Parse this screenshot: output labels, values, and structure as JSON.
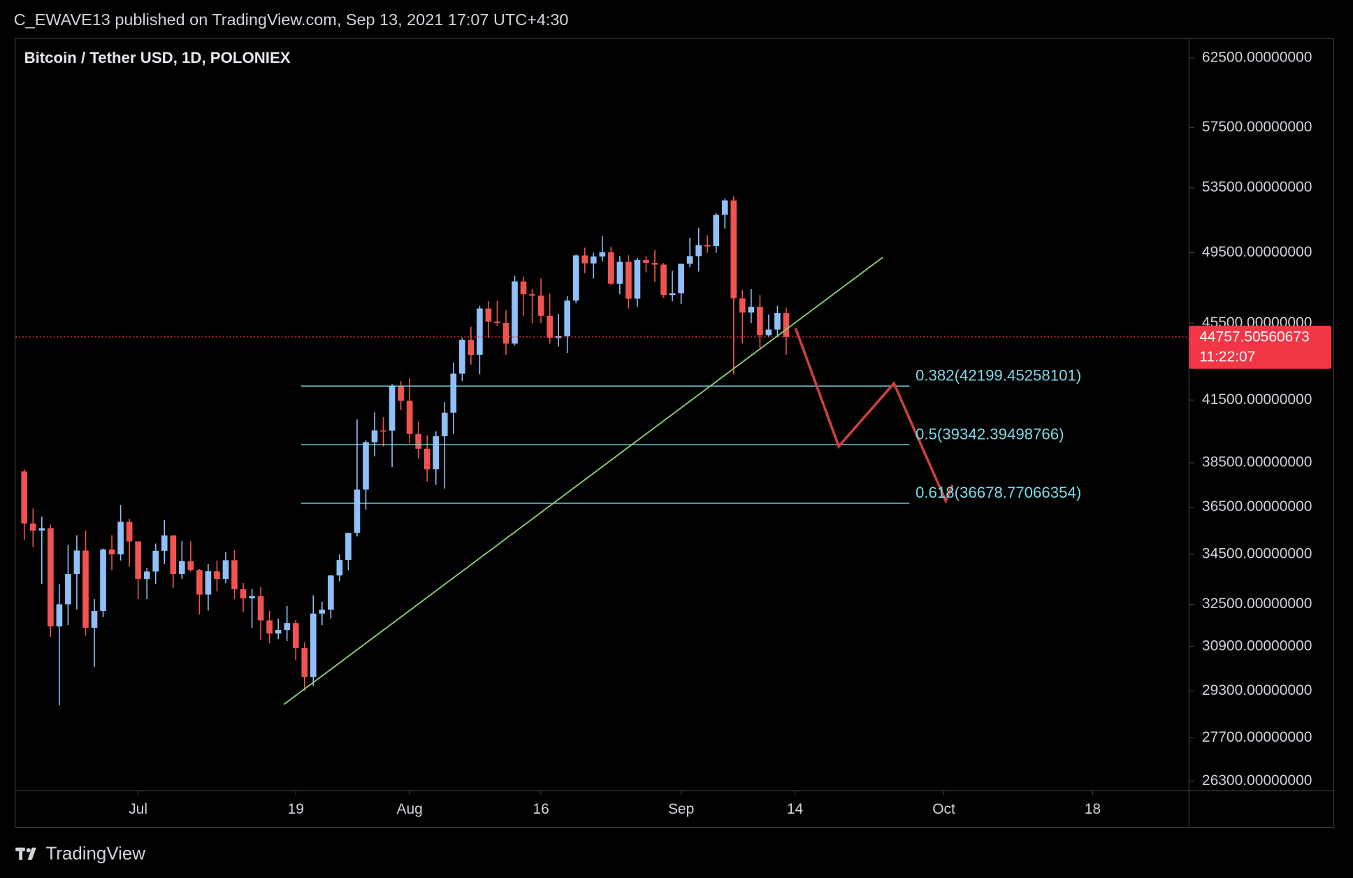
{
  "header": "C_EWAVE13 published on TradingView.com, Sep 13, 2021 17:07 UTC+4:30",
  "footer": "TradingView",
  "chart_data": {
    "type": "candlestick",
    "title": "Bitcoin / Tether USD, 1D, POLONIEX",
    "x": [
      "2021-06-18",
      "2021-06-19",
      "2021-06-20",
      "2021-06-21",
      "2021-06-22",
      "2021-06-23",
      "2021-06-24",
      "2021-06-25",
      "2021-06-26",
      "2021-06-27",
      "2021-06-28",
      "2021-06-29",
      "2021-06-30",
      "2021-07-01",
      "2021-07-02",
      "2021-07-03",
      "2021-07-04",
      "2021-07-05",
      "2021-07-06",
      "2021-07-07",
      "2021-07-08",
      "2021-07-09",
      "2021-07-10",
      "2021-07-11",
      "2021-07-12",
      "2021-07-13",
      "2021-07-14",
      "2021-07-15",
      "2021-07-16",
      "2021-07-17",
      "2021-07-18",
      "2021-07-19",
      "2021-07-20",
      "2021-07-21",
      "2021-07-22",
      "2021-07-23",
      "2021-07-24",
      "2021-07-25",
      "2021-07-26",
      "2021-07-27",
      "2021-07-28",
      "2021-07-29",
      "2021-07-30",
      "2021-07-31",
      "2021-08-01",
      "2021-08-02",
      "2021-08-03",
      "2021-08-04",
      "2021-08-05",
      "2021-08-06",
      "2021-08-07",
      "2021-08-08",
      "2021-08-09",
      "2021-08-10",
      "2021-08-11",
      "2021-08-12",
      "2021-08-13",
      "2021-08-14",
      "2021-08-15",
      "2021-08-16",
      "2021-08-17",
      "2021-08-18",
      "2021-08-19",
      "2021-08-20",
      "2021-08-21",
      "2021-08-22",
      "2021-08-23",
      "2021-08-24",
      "2021-08-25",
      "2021-08-26",
      "2021-08-27",
      "2021-08-28",
      "2021-08-29",
      "2021-08-30",
      "2021-08-31",
      "2021-09-01",
      "2021-09-02",
      "2021-09-03",
      "2021-09-04",
      "2021-09-05",
      "2021-09-06",
      "2021-09-07",
      "2021-09-08",
      "2021-09-09",
      "2021-09-10",
      "2021-09-11",
      "2021-09-12",
      "2021-09-13"
    ],
    "open": [
      38100,
      35800,
      35500,
      35600,
      31650,
      32500,
      33700,
      34660,
      31600,
      32240,
      34700,
      34500,
      35870,
      35040,
      33500,
      33800,
      34650,
      35290,
      33700,
      34220,
      33860,
      32880,
      33810,
      33500,
      34260,
      33090,
      32730,
      32820,
      31880,
      31380,
      31520,
      31780,
      30840,
      29790,
      32140,
      32290,
      33640,
      34270,
      35400,
      37280,
      39460,
      40020,
      40010,
      42220,
      41460,
      39850,
      39150,
      38200,
      39740,
      40870,
      42830,
      44600,
      43800,
      46300,
      45580,
      45510,
      44400,
      47830,
      47100,
      47030,
      45900,
      44700,
      44800,
      46750,
      49340,
      48870,
      49280,
      49530,
      47700,
      48960,
      46850,
      49070,
      48900,
      48800,
      47050,
      47160,
      48850,
      49300,
      49950,
      49900,
      51800,
      52700,
      46870,
      46080,
      46400,
      44850,
      45150,
      46050
    ],
    "high": [
      38200,
      36450,
      36100,
      35750,
      33300,
      34900,
      35300,
      35500,
      32700,
      34750,
      35300,
      36600,
      36000,
      35040,
      33950,
      34950,
      35950,
      35300,
      35050,
      35050,
      33900,
      34100,
      34250,
      34600,
      34680,
      33340,
      33100,
      33180,
      32250,
      31950,
      32430,
      31900,
      31050,
      32850,
      32600,
      33650,
      34500,
      35400,
      40550,
      39550,
      40900,
      40650,
      42300,
      42450,
      42600,
      40450,
      39780,
      39970,
      41400,
      43400,
      44700,
      45300,
      46450,
      46700,
      46750,
      46200,
      48150,
      48100,
      47400,
      48000,
      47150,
      46000,
      47000,
      49400,
      49800,
      49500,
      50500,
      49850,
      49300,
      49350,
      49200,
      49300,
      49650,
      48900,
      48450,
      48850,
      50400,
      51000,
      50550,
      51900,
      52800,
      52950,
      47350,
      47400,
      47050,
      45980,
      46450,
      46350
    ],
    "low": [
      35100,
      34800,
      33300,
      31250,
      28800,
      31700,
      32300,
      31300,
      30150,
      32000,
      33850,
      34250,
      34000,
      32700,
      32700,
      33300,
      34100,
      33150,
      33500,
      33800,
      32100,
      32250,
      33000,
      33330,
      32700,
      32200,
      31600,
      31150,
      31020,
      31170,
      31100,
      30400,
      29300,
      29480,
      31700,
      31950,
      33400,
      33850,
      35250,
      36400,
      38800,
      39250,
      38300,
      41000,
      39400,
      38700,
      37640,
      37500,
      37330,
      39850,
      42450,
      43300,
      42800,
      44700,
      45350,
      43800,
      44300,
      45900,
      45500,
      45500,
      44400,
      44250,
      43900,
      46600,
      48300,
      48000,
      49000,
      47600,
      47100,
      46300,
      46400,
      48350,
      47800,
      46900,
      46700,
      46550,
      48650,
      48400,
      49500,
      49500,
      50950,
      42800,
      44400,
      45500,
      44150,
      44750,
      44750,
      43800
    ],
    "close": [
      35800,
      35500,
      35600,
      31650,
      32500,
      33700,
      34660,
      31600,
      32240,
      34700,
      34500,
      35870,
      35040,
      33500,
      33800,
      34650,
      35290,
      33700,
      34220,
      33860,
      32880,
      33810,
      33500,
      34260,
      33090,
      32730,
      32820,
      31880,
      31380,
      31520,
      31780,
      30840,
      29790,
      32140,
      32290,
      33640,
      34270,
      35400,
      37280,
      39460,
      40020,
      40010,
      42220,
      41460,
      39850,
      39150,
      38200,
      39740,
      40870,
      42830,
      44600,
      43800,
      46300,
      45580,
      45510,
      44400,
      47830,
      47100,
      47030,
      45900,
      44700,
      44800,
      46750,
      49340,
      48870,
      49280,
      49530,
      47700,
      48960,
      46850,
      49070,
      48900,
      48800,
      47050,
      47160,
      48850,
      49300,
      49950,
      49900,
      51800,
      52700,
      46870,
      46080,
      46400,
      44850,
      45150,
      46050,
      44757.50560673
    ],
    "up_color": "#90bff9",
    "down_color": "#f05350",
    "log_scale": true,
    "ylim": [
      26000,
      64000
    ],
    "yticks": [
      {
        "value": 26300,
        "label": "26300.00000000"
      },
      {
        "value": 27700,
        "label": "27700.00000000"
      },
      {
        "value": 29300,
        "label": "29300.00000000"
      },
      {
        "value": 30900,
        "label": "30900.00000000"
      },
      {
        "value": 32500,
        "label": "32500.00000000"
      },
      {
        "value": 34500,
        "label": "34500.00000000"
      },
      {
        "value": 36500,
        "label": "36500.00000000"
      },
      {
        "value": 38500,
        "label": "38500.00000000"
      },
      {
        "value": 41500,
        "label": "41500.00000000"
      },
      {
        "value": 45500,
        "label": "45500.00000000"
      },
      {
        "value": 49500,
        "label": "49500.00000000"
      },
      {
        "value": 53500,
        "label": "53500.00000000"
      },
      {
        "value": 57500,
        "label": "57500.00000000"
      },
      {
        "value": 62500,
        "label": "62500.00000000"
      }
    ],
    "xlim": [
      "2021-06-17",
      "2021-10-29"
    ],
    "xticks": [
      {
        "value": "2021-07-01",
        "label": "Jul"
      },
      {
        "value": "2021-07-19",
        "label": "19"
      },
      {
        "value": "2021-08-01",
        "label": "Aug"
      },
      {
        "value": "2021-08-16",
        "label": "16"
      },
      {
        "value": "2021-09-01",
        "label": "Sep"
      },
      {
        "value": "2021-09-14",
        "label": "14"
      },
      {
        "value": "2021-10-01",
        "label": "Oct"
      },
      {
        "value": "2021-10-18",
        "label": "18"
      }
    ],
    "fib_levels": [
      {
        "value": 42199.45258101,
        "label": "0.382(42199.45258101)"
      },
      {
        "value": 39342.39498766,
        "label": "0.5(39342.39498766)"
      },
      {
        "value": 36678.77066354,
        "label": "0.618(36678.77066354)"
      }
    ],
    "fib_color": "#7fd8e8",
    "last_price": 44757.50560673,
    "countdown": "11:22:07",
    "last_price_color": "#f23645"
  }
}
